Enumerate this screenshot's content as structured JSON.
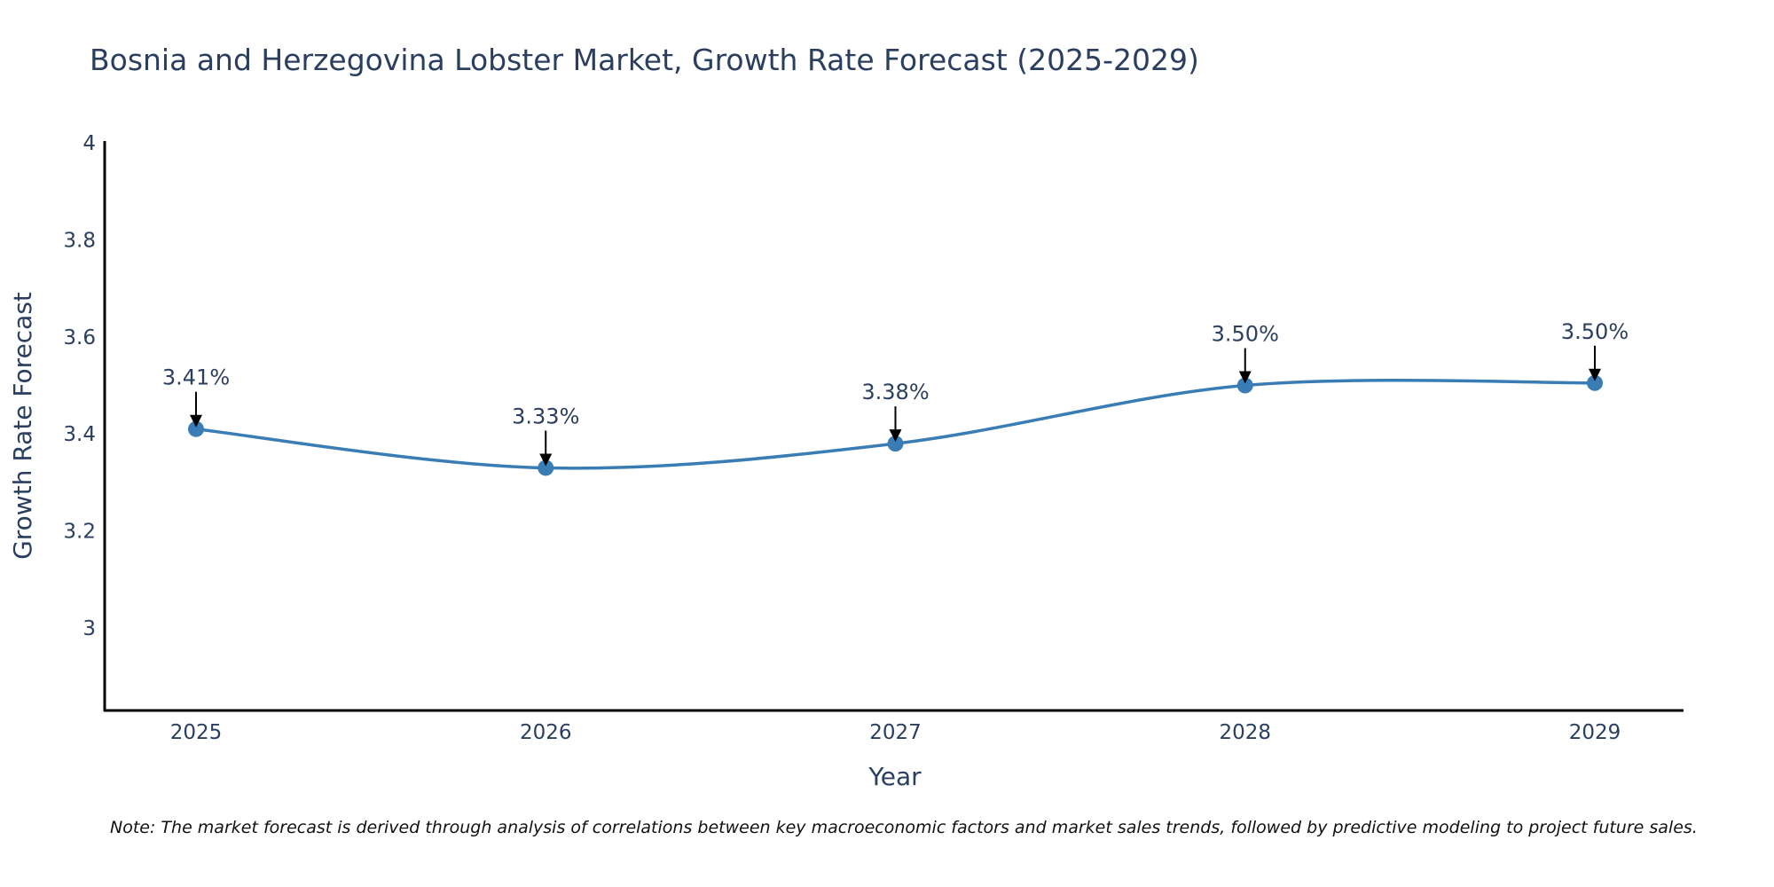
{
  "chart_data": {
    "type": "line",
    "title": "Bosnia and Herzegovina Lobster Market, Growth Rate Forecast (2025-2029)",
    "xlabel": "Year",
    "ylabel": "Growth Rate Forecast",
    "categories": [
      "2025",
      "2026",
      "2027",
      "2028",
      "2029"
    ],
    "values": [
      3.41,
      3.33,
      3.38,
      3.5,
      3.505
    ],
    "annotations": [
      "3.41%",
      "3.33%",
      "3.38%",
      "3.50%",
      "3.50%"
    ],
    "yticks": [
      "3",
      "3.2",
      "3.4",
      "3.6",
      "3.8",
      "4"
    ],
    "ylim": [
      2.83,
      4.0
    ],
    "grid": false,
    "line_shape": "spline",
    "color": "#3a7db5",
    "note": "Note: The market forecast is derived through analysis of correlations between key macroeconomic factors and market sales trends, followed by predictive modeling to project future sales."
  }
}
